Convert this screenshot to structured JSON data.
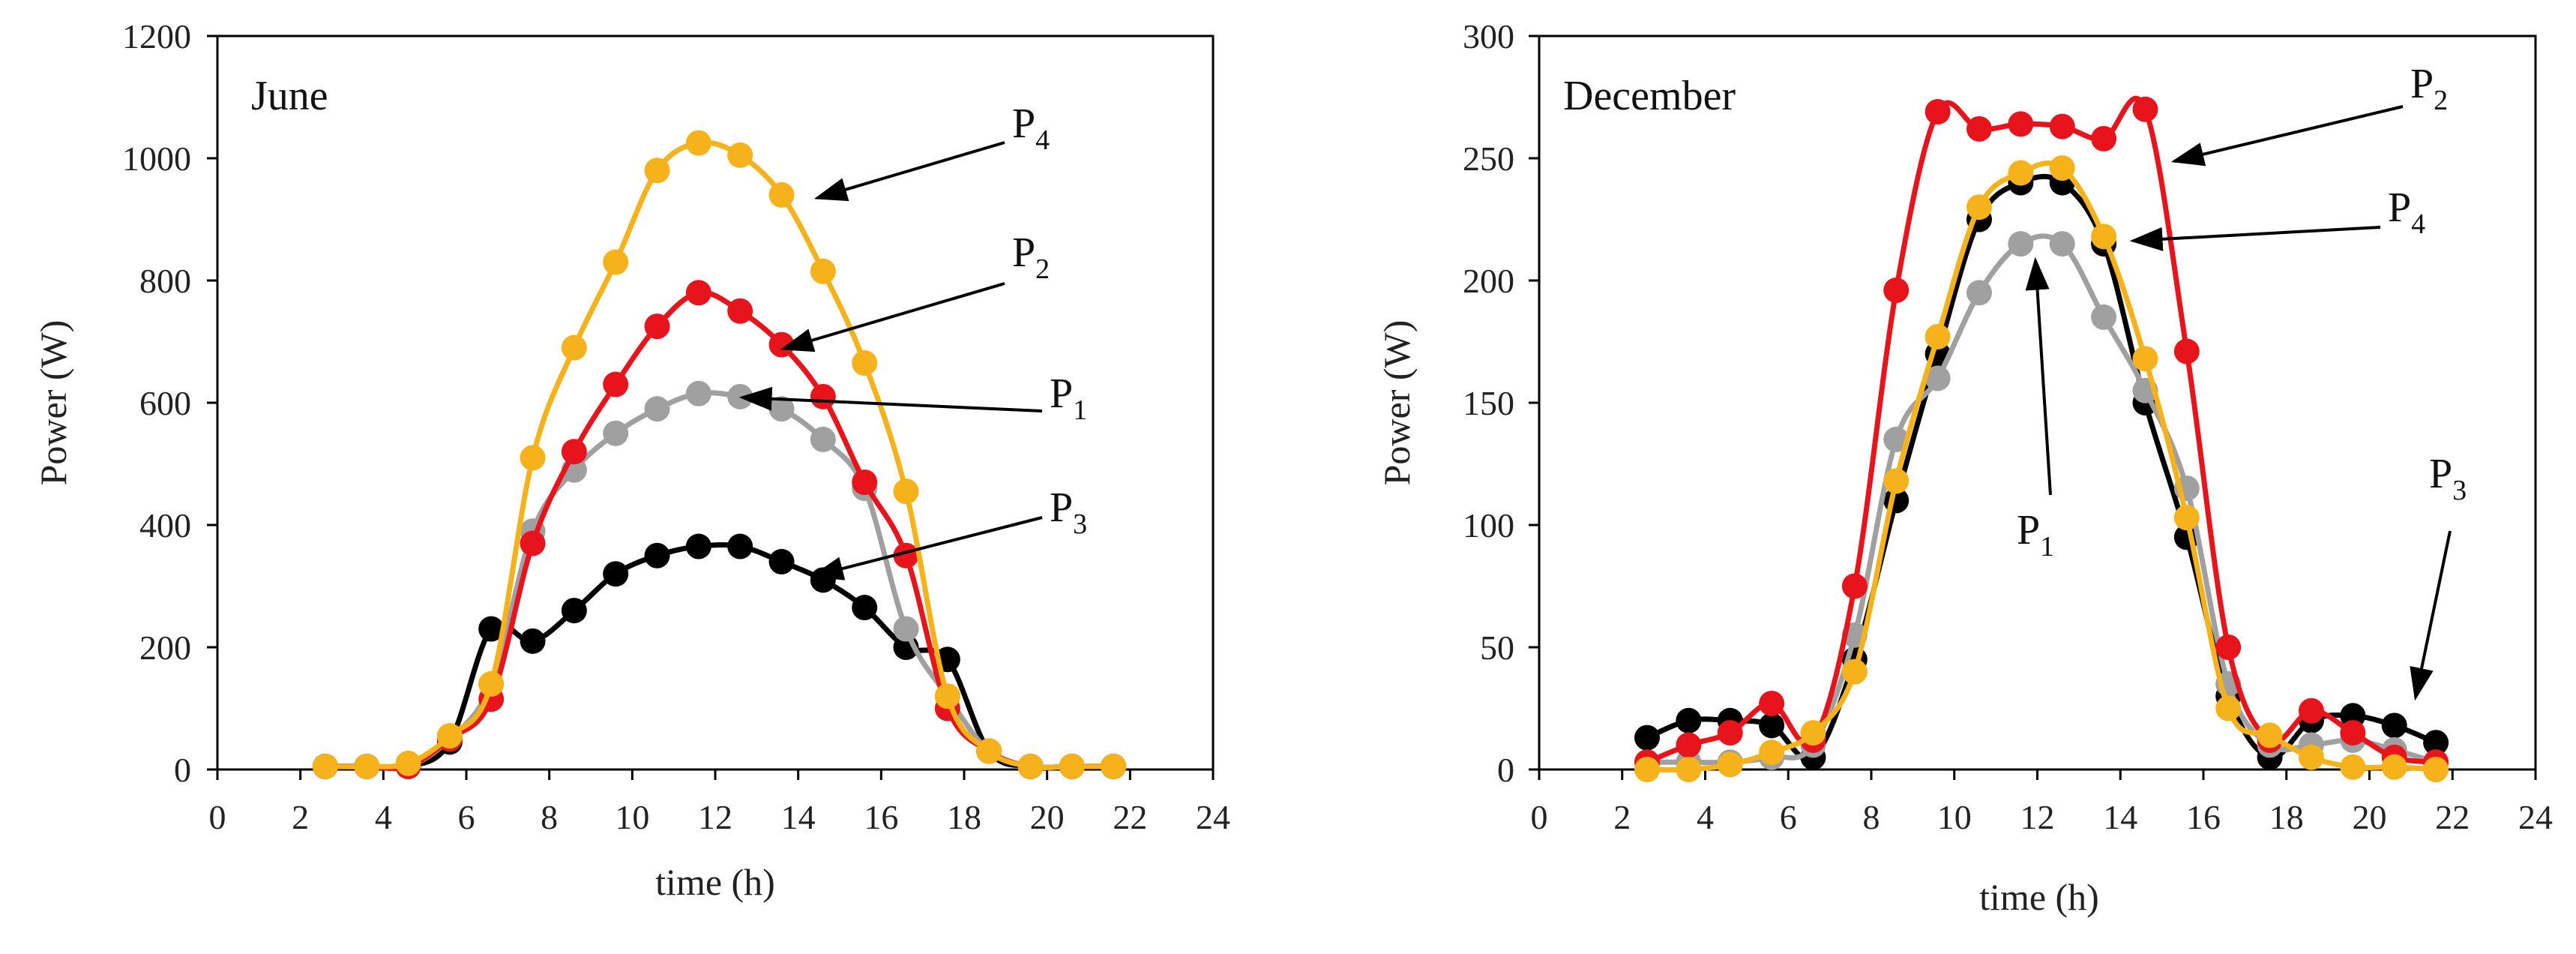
{
  "chart_data": [
    {
      "type": "line",
      "title": "June",
      "xlabel": "time (h)",
      "ylabel": "Power (W)",
      "xlim": [
        0,
        24
      ],
      "ylim": [
        0,
        1200
      ],
      "xticks": [
        0,
        2,
        4,
        6,
        8,
        10,
        12,
        14,
        16,
        18,
        20,
        22,
        24
      ],
      "yticks": [
        0,
        200,
        400,
        600,
        800,
        1000,
        1200
      ],
      "x": [
        2.6,
        3.6,
        4.6,
        5.6,
        6.6,
        7.6,
        8.6,
        9.6,
        10.6,
        11.6,
        12.6,
        13.6,
        14.6,
        15.6,
        16.6,
        17.6,
        18.6,
        19.6,
        20.6,
        21.6
      ],
      "series": [
        {
          "name": "P3",
          "color": "#000000",
          "values": [
            5,
            5,
            5,
            45,
            230,
            210,
            260,
            320,
            350,
            365,
            365,
            340,
            310,
            265,
            200,
            180,
            30,
            5,
            5,
            5
          ]
        },
        {
          "name": "P1",
          "color": "#a0a0a0",
          "values": [
            5,
            5,
            5,
            50,
            140,
            390,
            490,
            550,
            590,
            615,
            610,
            590,
            540,
            460,
            230,
            120,
            30,
            5,
            5,
            5
          ]
        },
        {
          "name": "P2",
          "color": "#e8141c",
          "values": [
            5,
            5,
            5,
            50,
            115,
            370,
            520,
            630,
            725,
            780,
            750,
            695,
            610,
            470,
            350,
            100,
            30,
            5,
            5,
            5
          ]
        },
        {
          "name": "P4",
          "color": "#f6b21a",
          "values": [
            5,
            5,
            10,
            55,
            140,
            510,
            690,
            830,
            980,
            1025,
            1005,
            940,
            815,
            665,
            455,
            120,
            30,
            5,
            5,
            5
          ]
        }
      ],
      "annotations": [
        {
          "label": "P",
          "sub": "4",
          "series": "P4"
        },
        {
          "label": "P",
          "sub": "2",
          "series": "P2"
        },
        {
          "label": "P",
          "sub": "1",
          "series": "P1"
        },
        {
          "label": "P",
          "sub": "3",
          "series": "P3"
        }
      ]
    },
    {
      "type": "line",
      "title": "December",
      "xlabel": "time (h)",
      "ylabel": "Power (W)",
      "xlim": [
        0,
        24
      ],
      "ylim": [
        0,
        300
      ],
      "xticks": [
        0,
        2,
        4,
        6,
        8,
        10,
        12,
        14,
        16,
        18,
        20,
        22,
        24
      ],
      "yticks": [
        0,
        50,
        100,
        150,
        200,
        250,
        300
      ],
      "x": [
        2.6,
        3.6,
        4.6,
        5.6,
        6.6,
        7.6,
        8.6,
        9.6,
        10.6,
        11.6,
        12.6,
        13.6,
        14.6,
        15.6,
        16.6,
        17.6,
        18.6,
        19.6,
        20.6,
        21.6
      ],
      "series": [
        {
          "name": "P3",
          "color": "#000000",
          "values": [
            13,
            20,
            20,
            18,
            5,
            45,
            110,
            170,
            225,
            240,
            240,
            215,
            150,
            95,
            30,
            5,
            20,
            22,
            18,
            11
          ]
        },
        {
          "name": "P1",
          "color": "#a0a0a0",
          "values": [
            3,
            3,
            3,
            5,
            10,
            55,
            135,
            160,
            195,
            215,
            215,
            185,
            155,
            115,
            35,
            10,
            10,
            12,
            8,
            3
          ]
        },
        {
          "name": "P2",
          "color": "#e8141c",
          "values": [
            3,
            10,
            15,
            27,
            12,
            75,
            196,
            269,
            262,
            264,
            263,
            258,
            270,
            171,
            50,
            12,
            24,
            15,
            5,
            3
          ]
        },
        {
          "name": "P4",
          "color": "#f6b21a",
          "values": [
            0,
            0,
            2,
            7,
            15,
            40,
            118,
            177,
            230,
            244,
            246,
            218,
            168,
            103,
            25,
            14,
            5,
            1,
            1,
            0
          ]
        }
      ],
      "annotations": [
        {
          "label": "P",
          "sub": "2",
          "series": "P2"
        },
        {
          "label": "P",
          "sub": "4",
          "series": "P4"
        },
        {
          "label": "P",
          "sub": "1",
          "series": "P1"
        },
        {
          "label": "P",
          "sub": "3",
          "series": "P3"
        }
      ]
    }
  ]
}
